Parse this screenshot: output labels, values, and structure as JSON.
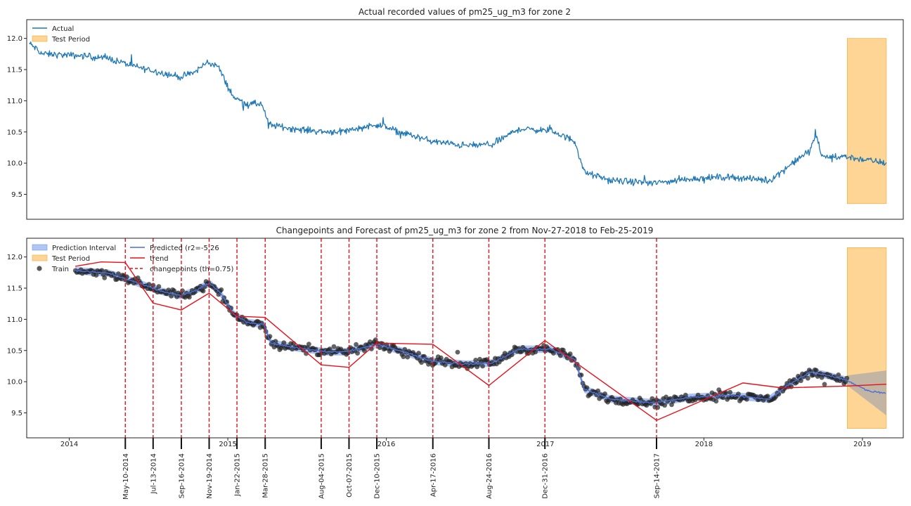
{
  "chart_data": [
    {
      "type": "line",
      "title": "Actual recorded values of pm25_ug_m3 for zone 2",
      "xlim": [
        "2013-09-25",
        "2019-04-05"
      ],
      "ylim": [
        9.1,
        12.3
      ],
      "yticks": [
        9.5,
        10.0,
        10.5,
        11.0,
        11.5,
        12.0
      ],
      "ytick_labels": [
        "9.5",
        "10.0",
        "10.5",
        "11.0",
        "11.5",
        "12.0"
      ],
      "legend": {
        "placement": "top-left",
        "entries": [
          "Actual",
          "Test Period"
        ]
      },
      "series": [
        {
          "name": "Actual",
          "color": "#1f77b4",
          "anchors": [
            [
              "2013-10-01",
              11.92
            ],
            [
              "2013-11-01",
              11.75
            ],
            [
              "2014-02-01",
              11.72
            ],
            [
              "2014-04-01",
              11.68
            ],
            [
              "2014-06-01",
              11.55
            ],
            [
              "2014-08-01",
              11.45
            ],
            [
              "2014-09-15",
              11.38
            ],
            [
              "2014-10-15",
              11.45
            ],
            [
              "2014-11-15",
              11.62
            ],
            [
              "2014-12-10",
              11.55
            ],
            [
              "2014-12-25",
              11.32
            ],
            [
              "2015-01-15",
              11.05
            ],
            [
              "2015-02-15",
              10.95
            ],
            [
              "2015-03-20",
              10.95
            ],
            [
              "2015-04-05",
              10.62
            ],
            [
              "2015-06-01",
              10.55
            ],
            [
              "2015-08-15",
              10.5
            ],
            [
              "2015-10-01",
              10.52
            ],
            [
              "2015-12-10",
              10.62
            ],
            [
              "2016-02-01",
              10.5
            ],
            [
              "2016-04-15",
              10.35
            ],
            [
              "2016-07-01",
              10.28
            ],
            [
              "2016-09-01",
              10.3
            ],
            [
              "2016-11-01",
              10.55
            ],
            [
              "2017-01-15",
              10.52
            ],
            [
              "2017-03-10",
              10.35
            ],
            [
              "2017-04-01",
              9.85
            ],
            [
              "2017-06-01",
              9.72
            ],
            [
              "2017-09-10",
              9.68
            ],
            [
              "2017-12-01",
              9.75
            ],
            [
              "2018-03-01",
              9.78
            ],
            [
              "2018-06-01",
              9.72
            ],
            [
              "2018-07-15",
              9.95
            ],
            [
              "2018-09-01",
              10.2
            ],
            [
              "2018-09-15",
              10.45
            ],
            [
              "2018-10-01",
              10.1
            ],
            [
              "2018-11-27",
              10.1
            ],
            [
              "2019-02-25",
              10.0
            ]
          ]
        }
      ],
      "test_period": {
        "start": "2018-11-27",
        "end": "2019-02-25",
        "ymin": 9.35,
        "ymax": 12.0,
        "color": "#fdb94c"
      }
    },
    {
      "type": "line",
      "title": "Changepoints and Forecast of pm25_ug_m3 for zone 2 from Nov-27-2018 to Feb-25-2019",
      "xlim": [
        "2013-09-25",
        "2019-04-05"
      ],
      "ylim": [
        9.1,
        12.3
      ],
      "yticks": [
        9.5,
        10.0,
        10.5,
        11.0,
        11.5,
        12.0
      ],
      "ytick_labels": [
        "9.5",
        "10.0",
        "10.5",
        "11.0",
        "11.5",
        "12.0"
      ],
      "year_ticks": [
        {
          "date": "2014-01-01",
          "label": "2014"
        },
        {
          "date": "2015-01-01",
          "label": "2015"
        },
        {
          "date": "2016-01-01",
          "label": "2016"
        },
        {
          "date": "2017-01-01",
          "label": "2017"
        },
        {
          "date": "2018-01-01",
          "label": "2018"
        },
        {
          "date": "2019-01-01",
          "label": "2019"
        }
      ],
      "legend": {
        "placement": "top-left",
        "entries": [
          "Prediction Interval",
          "Test Period",
          "Train",
          "Predicted (r2=-5.26",
          "trend",
          "changepoints (th=0.75)"
        ]
      },
      "changepoints": [
        {
          "date": "2014-05-10",
          "label": "May-10-2014"
        },
        {
          "date": "2014-07-13",
          "label": "Jul-13-2014"
        },
        {
          "date": "2014-09-16",
          "label": "Sep-16-2014"
        },
        {
          "date": "2014-11-19",
          "label": "Nov-19-2014"
        },
        {
          "date": "2015-01-22",
          "label": "Jan-22-2015"
        },
        {
          "date": "2015-03-28",
          "label": "Mar-28-2015"
        },
        {
          "date": "2015-08-04",
          "label": "Aug-04-2015"
        },
        {
          "date": "2015-10-07",
          "label": "Oct-07-2015"
        },
        {
          "date": "2015-12-10",
          "label": "Dec-10-2015"
        },
        {
          "date": "2016-04-17",
          "label": "Apr-17-2016"
        },
        {
          "date": "2016-08-24",
          "label": "Aug-24-2016"
        },
        {
          "date": "2016-12-31",
          "label": "Dec-31-2016"
        },
        {
          "date": "2017-09-14",
          "label": "Sep-14-2017"
        }
      ],
      "trend": [
        [
          "2014-01-15",
          11.85
        ],
        [
          "2014-03-15",
          11.92
        ],
        [
          "2014-05-10",
          11.91
        ],
        [
          "2014-07-13",
          11.26
        ],
        [
          "2014-09-16",
          11.15
        ],
        [
          "2014-11-19",
          11.42
        ],
        [
          "2015-01-22",
          11.05
        ],
        [
          "2015-03-28",
          11.03
        ],
        [
          "2015-08-04",
          10.27
        ],
        [
          "2015-10-07",
          10.23
        ],
        [
          "2015-12-10",
          10.62
        ],
        [
          "2016-04-17",
          10.6
        ],
        [
          "2016-08-24",
          9.94
        ],
        [
          "2016-12-31",
          10.66
        ],
        [
          "2017-09-14",
          9.38
        ],
        [
          "2018-04-01",
          9.98
        ],
        [
          "2018-07-01",
          9.9
        ],
        [
          "2018-11-27",
          9.93
        ],
        [
          "2019-02-25",
          9.96
        ]
      ],
      "predicted": [
        [
          "2014-01-15",
          11.78
        ],
        [
          "2014-04-01",
          11.74
        ],
        [
          "2014-06-01",
          11.6
        ],
        [
          "2014-08-01",
          11.45
        ],
        [
          "2014-09-15",
          11.38
        ],
        [
          "2014-10-15",
          11.45
        ],
        [
          "2014-11-20",
          11.58
        ],
        [
          "2014-12-15",
          11.42
        ],
        [
          "2015-01-15",
          11.08
        ],
        [
          "2015-02-15",
          10.95
        ],
        [
          "2015-03-25",
          10.92
        ],
        [
          "2015-04-10",
          10.62
        ],
        [
          "2015-06-01",
          10.55
        ],
        [
          "2015-08-15",
          10.48
        ],
        [
          "2015-10-01",
          10.48
        ],
        [
          "2015-12-10",
          10.6
        ],
        [
          "2016-02-01",
          10.5
        ],
        [
          "2016-04-15",
          10.33
        ],
        [
          "2016-07-01",
          10.28
        ],
        [
          "2016-09-01",
          10.3
        ],
        [
          "2016-11-01",
          10.52
        ],
        [
          "2017-01-15",
          10.52
        ],
        [
          "2017-03-10",
          10.35
        ],
        [
          "2017-04-01",
          9.88
        ],
        [
          "2017-06-01",
          9.72
        ],
        [
          "2017-09-10",
          9.66
        ],
        [
          "2017-12-01",
          9.75
        ],
        [
          "2018-03-01",
          9.78
        ],
        [
          "2018-06-01",
          9.72
        ],
        [
          "2018-07-15",
          9.95
        ],
        [
          "2018-09-01",
          10.15
        ],
        [
          "2018-10-01",
          10.12
        ],
        [
          "2018-11-27",
          10.02
        ],
        [
          "2019-01-15",
          9.85
        ],
        [
          "2019-02-25",
          9.82
        ]
      ],
      "interval_halfwidth": 0.06,
      "forecast_interval": [
        [
          "2018-11-27",
          10.1,
          9.94
        ],
        [
          "2019-02-25",
          10.18,
          9.46
        ]
      ],
      "train_noise": 0.06,
      "test_period": {
        "start": "2018-11-27",
        "end": "2019-02-25",
        "ymin": 9.25,
        "ymax": 12.15,
        "color": "#fdb94c"
      },
      "colors": {
        "train": "#222222",
        "predicted": "#4a6fd6",
        "interval": "#6f96e8",
        "trend": "#e8101a",
        "changepoints": "#e8101a"
      }
    }
  ]
}
